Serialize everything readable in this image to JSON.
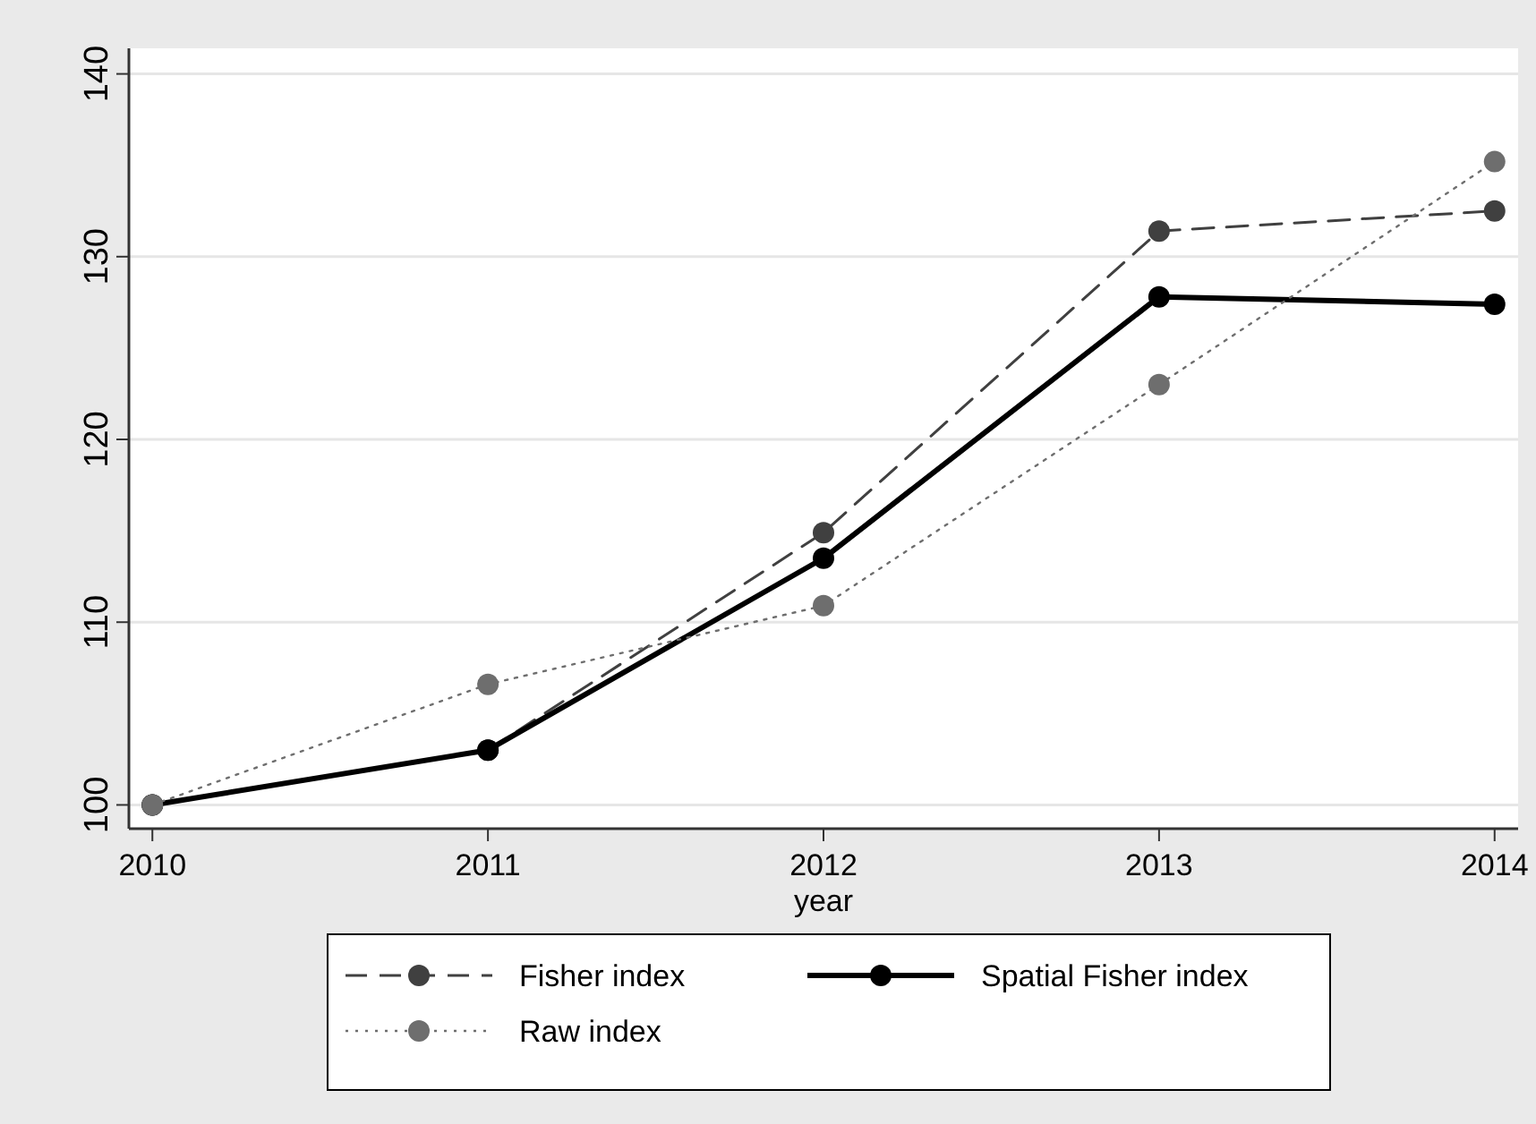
{
  "chart_data": {
    "type": "line",
    "xlabel": "year",
    "x": [
      2010,
      2011,
      2012,
      2013,
      2014
    ],
    "xlim": [
      2009.93,
      2014.07
    ],
    "xticks": [
      2010,
      2011,
      2012,
      2013,
      2014
    ],
    "ylim": [
      98.7,
      141.4
    ],
    "yticks": [
      100,
      110,
      120,
      130,
      140
    ],
    "grid": "y",
    "legend": "bottom",
    "marker": "circle",
    "series": [
      {
        "name": "Fisher index",
        "color": "#404040",
        "line_style": "dashed",
        "values": [
          100,
          103,
          114.9,
          131.4,
          132.5
        ]
      },
      {
        "name": "Spatial Fisher index",
        "color": "#000000",
        "line_style": "solid",
        "values": [
          100,
          103,
          113.5,
          127.8,
          127.4
        ]
      },
      {
        "name": "Raw index",
        "color": "#6e6e6e",
        "line_style": "dotted",
        "values": [
          100,
          106.6,
          110.9,
          123,
          135.2
        ]
      }
    ]
  }
}
